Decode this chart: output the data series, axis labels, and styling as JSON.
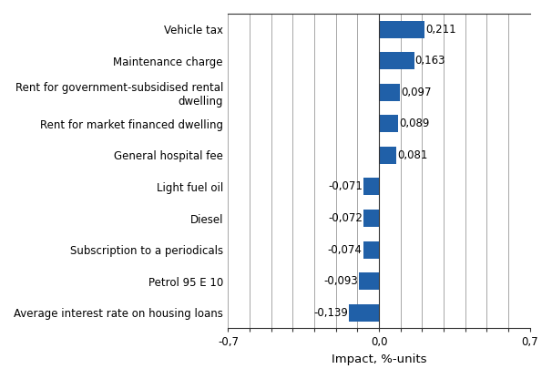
{
  "categories": [
    "Average interest rate on housing loans",
    "Petrol 95 E 10",
    "Subscription to a periodicals",
    "Diesel",
    "Light fuel oil",
    "General hospital fee",
    "Rent for market financed dwelling",
    "Rent for government-subsidised rental\ndwelling",
    "Maintenance charge",
    "Vehicle tax"
  ],
  "values": [
    -0.139,
    -0.093,
    -0.074,
    -0.072,
    -0.071,
    0.081,
    0.089,
    0.097,
    0.163,
    0.211
  ],
  "bar_color": "#2060A8",
  "xlabel": "Impact, %-units",
  "xlim": [
    -0.7,
    0.7
  ],
  "grid_ticks": [
    -0.7,
    -0.6,
    -0.5,
    -0.4,
    -0.3,
    -0.2,
    -0.1,
    0.0,
    0.1,
    0.2,
    0.3,
    0.4,
    0.5,
    0.6,
    0.7
  ],
  "xtick_positions": [
    -0.7,
    0.0,
    0.7
  ],
  "xtick_labels": [
    "-0,7",
    "0,0",
    "0,7"
  ],
  "value_labels": [
    "-0,139",
    "-0,093",
    "-0,074",
    "-0,072",
    "-0,071",
    "0,081",
    "0,089",
    "0,097",
    "0,163",
    "0,211"
  ],
  "background_color": "#ffffff",
  "grid_color": "#999999",
  "spine_color": "#333333",
  "label_fontsize": 8.5,
  "value_fontsize": 8.5,
  "xlabel_fontsize": 9.5
}
